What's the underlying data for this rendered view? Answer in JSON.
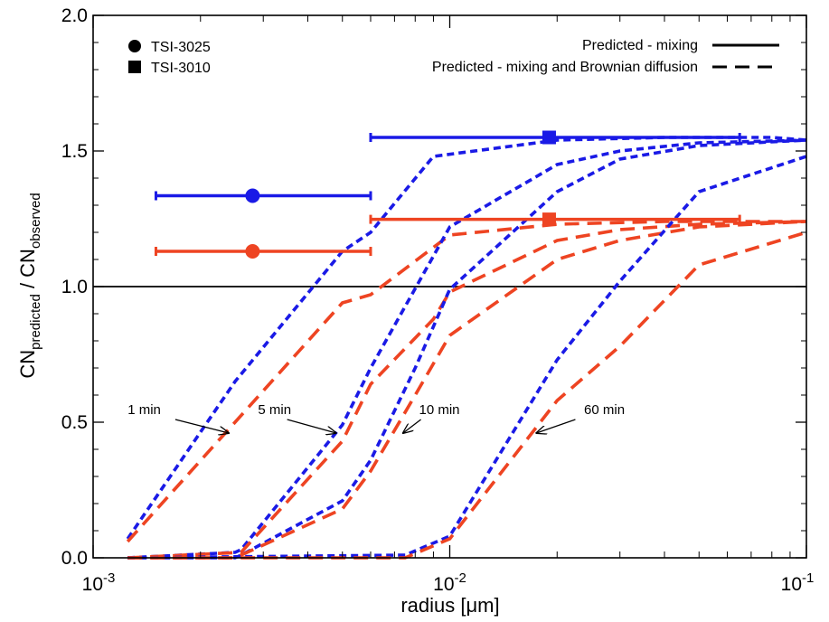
{
  "chart_data": {
    "type": "line",
    "xlabel_main": "radius [",
    "xlabel_unit": "μm",
    "xlabel_end": "]",
    "ylabel_main": "CN",
    "ylabel_sub1": "predicted",
    "ylabel_mid": " / CN",
    "ylabel_sub2": "observed",
    "xscale": "log",
    "xlim": [
      0.001,
      0.1
    ],
    "ylim": [
      0.0,
      2.0
    ],
    "x_ticks": [
      {
        "value": 0.001,
        "base": "10",
        "exp": "-3"
      },
      {
        "value": 0.01,
        "base": "10",
        "exp": "-2"
      },
      {
        "value": 0.1,
        "base": "10",
        "exp": "-1"
      }
    ],
    "y_ticks": [
      {
        "value": 0.0,
        "label": "0.0"
      },
      {
        "value": 0.5,
        "label": "0.5"
      },
      {
        "value": 1.0,
        "label": "1.0"
      },
      {
        "value": 1.5,
        "label": "1.5"
      },
      {
        "value": 2.0,
        "label": "2.0"
      }
    ],
    "reference_line": {
      "y": 1.0,
      "color": "#000000"
    },
    "colors": {
      "blue": "#1a1ae6",
      "orange": "#ee4422"
    },
    "series": [
      {
        "style": "dotted",
        "color": "blue",
        "x": [
          0.00125,
          0.0025,
          0.005,
          0.006,
          0.009,
          0.02,
          0.04,
          0.06,
          0.08,
          0.1
        ],
        "y": [
          0.07,
          0.65,
          1.13,
          1.2,
          1.48,
          1.54,
          1.55,
          1.55,
          1.55,
          1.54
        ]
      },
      {
        "style": "dashed",
        "color": "orange",
        "x": [
          0.00125,
          0.0025,
          0.005,
          0.006,
          0.01,
          0.02,
          0.04,
          0.06,
          0.08,
          0.1
        ],
        "y": [
          0.06,
          0.5,
          0.94,
          0.97,
          1.19,
          1.23,
          1.24,
          1.24,
          1.24,
          1.24
        ]
      },
      {
        "style": "dotted",
        "color": "blue",
        "x": [
          0.00125,
          0.0025,
          0.0026,
          0.005,
          0.006,
          0.01,
          0.02,
          0.03,
          0.05,
          0.1
        ],
        "y": [
          0.0,
          0.02,
          0.03,
          0.49,
          0.7,
          1.22,
          1.45,
          1.5,
          1.53,
          1.54
        ]
      },
      {
        "style": "dashed",
        "color": "orange",
        "x": [
          0.00125,
          0.0026,
          0.005,
          0.006,
          0.009,
          0.01,
          0.02,
          0.03,
          0.05,
          0.1
        ],
        "y": [
          0.0,
          0.02,
          0.43,
          0.64,
          0.88,
          0.98,
          1.17,
          1.21,
          1.23,
          1.24
        ]
      },
      {
        "style": "dotted",
        "color": "blue",
        "x": [
          0.00125,
          0.0025,
          0.0026,
          0.005,
          0.006,
          0.008,
          0.01,
          0.02,
          0.03,
          0.05,
          0.1
        ],
        "y": [
          0.0,
          0.0,
          0.01,
          0.21,
          0.36,
          0.7,
          0.99,
          1.35,
          1.47,
          1.52,
          1.54
        ]
      },
      {
        "style": "dashed",
        "color": "orange",
        "x": [
          0.00125,
          0.0025,
          0.0026,
          0.005,
          0.006,
          0.008,
          0.01,
          0.02,
          0.03,
          0.05,
          0.1
        ],
        "y": [
          0.0,
          0.0,
          0.01,
          0.18,
          0.32,
          0.6,
          0.82,
          1.1,
          1.17,
          1.22,
          1.24
        ]
      },
      {
        "style": "dotted",
        "color": "blue",
        "x": [
          0.00125,
          0.0075,
          0.01,
          0.02,
          0.03,
          0.05,
          0.1
        ],
        "y": [
          0.0,
          0.01,
          0.08,
          0.73,
          1.02,
          1.35,
          1.48
        ]
      },
      {
        "style": "dashed",
        "color": "orange",
        "x": [
          0.00125,
          0.0075,
          0.01,
          0.02,
          0.03,
          0.05,
          0.1
        ],
        "y": [
          0.0,
          0.0,
          0.07,
          0.58,
          0.78,
          1.08,
          1.2
        ]
      }
    ],
    "observations": [
      {
        "instrument": "TSI-3025",
        "marker": "circle",
        "color": "blue",
        "x": 0.0028,
        "xerr": [
          0.0015,
          0.006
        ],
        "y": 1.335
      },
      {
        "instrument": "TSI-3025",
        "marker": "circle",
        "color": "orange",
        "x": 0.0028,
        "xerr": [
          0.0015,
          0.006
        ],
        "y": 1.13
      },
      {
        "instrument": "TSI-3010",
        "marker": "square",
        "color": "blue",
        "x": 0.019,
        "xerr": [
          0.006,
          0.065
        ],
        "y": 1.55
      },
      {
        "instrument": "TSI-3010",
        "marker": "square",
        "color": "orange",
        "x": 0.019,
        "xerr": [
          0.006,
          0.065
        ],
        "y": 1.248
      }
    ],
    "annotations": [
      {
        "label": "1 min",
        "text_x": 0.00125,
        "text_y": 0.53,
        "arrow_from": [
          0.0017,
          0.51
        ],
        "arrow_to": [
          0.0024,
          0.46
        ]
      },
      {
        "label": "5 min",
        "text_x": 0.0029,
        "text_y": 0.53,
        "arrow_from": [
          0.0035,
          0.51
        ],
        "arrow_to": [
          0.0048,
          0.46
        ]
      },
      {
        "label": "10 min",
        "text_x": 0.0082,
        "text_y": 0.53,
        "arrow_from": [
          0.0083,
          0.51
        ],
        "arrow_to": [
          0.0074,
          0.46
        ]
      },
      {
        "label": "60 min",
        "text_x": 0.0238,
        "text_y": 0.53,
        "arrow_from": [
          0.0225,
          0.51
        ],
        "arrow_to": [
          0.0175,
          0.46
        ]
      }
    ],
    "legend_markers": [
      {
        "marker": "circle",
        "label": "TSI-3025"
      },
      {
        "marker": "square",
        "label": "TSI-3010"
      }
    ],
    "legend_lines": [
      {
        "style": "solid",
        "label": "Predicted - mixing"
      },
      {
        "style": "dashed",
        "label": "Predicted - mixing and Brownian diffusion"
      }
    ]
  }
}
